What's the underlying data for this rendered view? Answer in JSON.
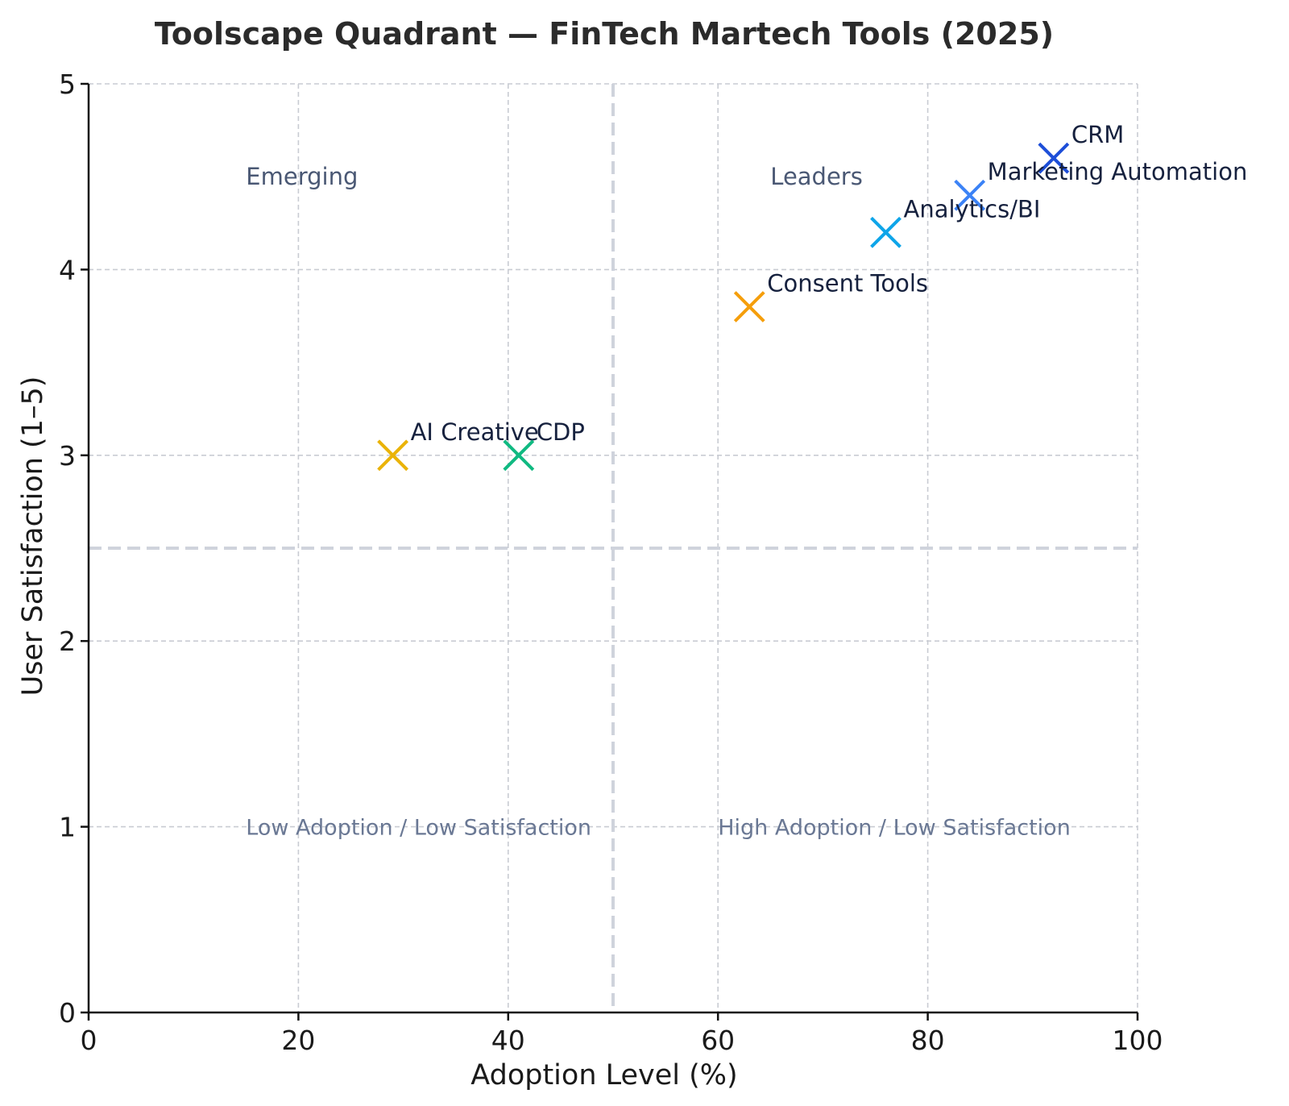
{
  "chart_data": {
    "type": "scatter",
    "title": "Toolscape Quadrant — FinTech Martech Tools (2025)",
    "xlabel": "Adoption Level (%)",
    "ylabel": "User Satisfaction (1–5)",
    "xlim": [
      0,
      100
    ],
    "ylim": [
      0,
      5
    ],
    "xticks": [
      0,
      20,
      40,
      60,
      80,
      100
    ],
    "yticks": [
      0,
      1,
      2,
      3,
      4,
      5
    ],
    "grid": true,
    "divider_x": 50,
    "divider_y": 2.5,
    "marker": "x",
    "points": [
      {
        "name": "CRM",
        "x": 92,
        "y": 4.6,
        "color": "#1d4ed8"
      },
      {
        "name": "Marketing Automation",
        "x": 84,
        "y": 4.4,
        "color": "#3b82f6"
      },
      {
        "name": "Analytics/BI",
        "x": 76,
        "y": 4.2,
        "color": "#0ea5e9"
      },
      {
        "name": "Consent Tools",
        "x": 63,
        "y": 3.8,
        "color": "#f59e0b"
      },
      {
        "name": "AI Creative",
        "x": 29,
        "y": 3.0,
        "color": "#eab308"
      },
      {
        "name": "CDP",
        "x": 41,
        "y": 3.0,
        "color": "#10b981"
      }
    ],
    "quadrant_labels": [
      {
        "text": "Emerging",
        "x": 15,
        "y": 4.5,
        "style": "top"
      },
      {
        "text": "Leaders",
        "x": 65,
        "y": 4.5,
        "style": "top"
      },
      {
        "text": "Low Adoption / Low Satisfaction",
        "x": 15,
        "y": 1.0,
        "style": "low"
      },
      {
        "text": "High Adoption / Low Satisfaction",
        "x": 60,
        "y": 1.0,
        "style": "low"
      }
    ]
  }
}
